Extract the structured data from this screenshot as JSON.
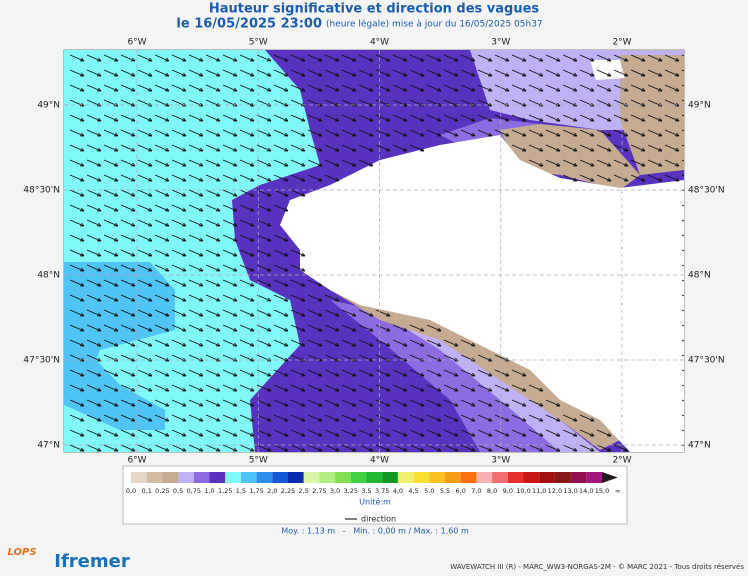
{
  "header": {
    "title": "Hauteur significative et direction des vagues",
    "subtitle_date": "le 16/05/2025 23:00",
    "subtitle_note": "(heure légale) mise à jour du 16/05/2025 05h37"
  },
  "map": {
    "lon_ticks": [
      {
        "value": -6,
        "label": "6°W"
      },
      {
        "value": -5,
        "label": "5°W"
      },
      {
        "value": -4,
        "label": "4°W"
      },
      {
        "value": -3,
        "label": "3°W"
      },
      {
        "value": -2,
        "label": "2°W"
      }
    ],
    "lat_ticks": [
      {
        "value": 49,
        "label": "49°N"
      },
      {
        "value": 48.5,
        "label": "48°30'N"
      },
      {
        "value": 48,
        "label": "48°N"
      },
      {
        "value": 47.5,
        "label": "47°30'N"
      },
      {
        "value": 47,
        "label": "47°N"
      }
    ]
  },
  "legend": {
    "labels": [
      "0,0",
      "0,1",
      "0,25",
      "0,5",
      "0,75",
      "1,0",
      "1,25",
      "1,5",
      "1,75",
      "2,0",
      "2,25",
      "2,5",
      "2,75",
      "3,0",
      "3,25",
      "3,5",
      "3,75",
      "4,0",
      "4,5",
      "5,0",
      "5,5",
      "6,0",
      "7,0",
      "8,0",
      "9,0",
      "10,0",
      "11,0",
      "12,0",
      "13,0",
      "14,0",
      "15,0",
      "∞"
    ],
    "colors": [
      "#e6d6c4",
      "#d2bca6",
      "#c4ab92",
      "#c0b0f4",
      "#8c6ce0",
      "#5a32c0",
      "#80f8f8",
      "#50c4f4",
      "#2890e8",
      "#1458d8",
      "#0c2cb0",
      "#d8f4a8",
      "#b0ec80",
      "#80e050",
      "#40d040",
      "#20b830",
      "#109820",
      "#f0f070",
      "#f8e030",
      "#f8c020",
      "#f89c18",
      "#f87010",
      "#f8b0b0",
      "#f07070",
      "#e83030",
      "#c81818",
      "#a01010",
      "#881818",
      "#901050",
      "#a01880",
      "#201818"
    ],
    "unit": "Unité:m",
    "arrow_label": "direction",
    "stats": "Moy. : 1,13 m   -   Min. : 0,00 m / Max. : 1,60 m"
  },
  "footer": {
    "credit": "WAVEWATCH III (R) - MARC_WW3-NORGAS-2M - © MARC 2021 - Tous droits réservés",
    "logo_left": "LOPS",
    "logo_right": "Ifremer"
  }
}
